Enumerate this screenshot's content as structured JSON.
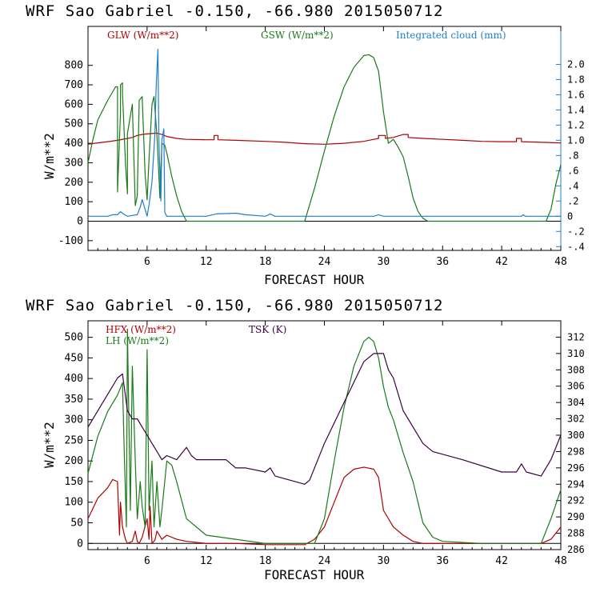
{
  "chart_data": [
    {
      "type": "line",
      "title": "WRF   Sao Gabriel    -0.150, -66.980  2015050712",
      "xlabel": "FORECAST HOUR",
      "ylabel": "W/m**2",
      "ylabel_right": "",
      "xlim": [
        0,
        48
      ],
      "ylim": [
        -150,
        1000
      ],
      "ylim_right": [
        -0.45,
        2.5
      ],
      "xticks": [
        6,
        12,
        18,
        24,
        30,
        36,
        42,
        48
      ],
      "yticks": [
        -100,
        0,
        100,
        200,
        300,
        400,
        500,
        600,
        700,
        800
      ],
      "yticks_right": [
        -0.4,
        -0.2,
        0,
        0.2,
        0.4,
        0.6,
        0.8,
        1.0,
        1.2,
        1.4,
        1.6,
        1.8,
        2.0
      ],
      "yticks_right_labels": [
        "-.4",
        "-.2",
        "0",
        ".2",
        ".4",
        ".6",
        ".8",
        "1.0",
        "1.2",
        "1.4",
        "1.6",
        "1.8",
        "2.0"
      ],
      "series": [
        {
          "name": "GLW (W/m**2)",
          "color": "#b00000",
          "axis": "left",
          "x": [
            0,
            1,
            2,
            3,
            4,
            4.5,
            5,
            5.5,
            6,
            6.5,
            7,
            7.5,
            8,
            9,
            10,
            12,
            12.8,
            12.8,
            13.2,
            13.2,
            15,
            18,
            20,
            22,
            24,
            26,
            28,
            29,
            29.5,
            29.5,
            30.2,
            30.2,
            31,
            32,
            32.5,
            32.5,
            34,
            36,
            38,
            40,
            42,
            43.5,
            43.5,
            44,
            44,
            46,
            48
          ],
          "y": [
            395,
            402,
            408,
            415,
            425,
            430,
            440,
            445,
            448,
            450,
            452,
            445,
            435,
            425,
            420,
            418,
            418,
            440,
            440,
            418,
            415,
            410,
            405,
            398,
            395,
            400,
            410,
            420,
            425,
            440,
            440,
            425,
            430,
            445,
            445,
            430,
            425,
            420,
            415,
            410,
            408,
            408,
            425,
            425,
            408,
            405,
            402
          ]
        },
        {
          "name": "GSW (W/m**2)",
          "color": "#1a7a1a",
          "axis": "left",
          "x": [
            0,
            0.5,
            1,
            2,
            2.8,
            3,
            3,
            3.3,
            3.3,
            3.5,
            3.5,
            3.8,
            4,
            4,
            4.5,
            4.8,
            5,
            5.2,
            5.5,
            5.8,
            6,
            6.2,
            6.5,
            6.7,
            7,
            7.3,
            7.5,
            7.8,
            8,
            8.5,
            9,
            9.5,
            10,
            10.5,
            22,
            23,
            24,
            25,
            26,
            27,
            28,
            28.5,
            29,
            29.5,
            30,
            30.5,
            31,
            31.5,
            32,
            32.5,
            33,
            33.5,
            34,
            34.5,
            46.5,
            47,
            47.5,
            48
          ],
          "y": [
            300,
            420,
            520,
            620,
            690,
            690,
            150,
            560,
            700,
            710,
            660,
            300,
            140,
            450,
            600,
            80,
            130,
            620,
            640,
            240,
            110,
            320,
            600,
            640,
            440,
            120,
            400,
            390,
            350,
            230,
            130,
            50,
            0,
            0,
            0,
            170,
            360,
            540,
            690,
            790,
            850,
            855,
            840,
            770,
            560,
            400,
            420,
            380,
            330,
            230,
            120,
            50,
            15,
            0,
            0,
            60,
            190,
            290
          ]
        },
        {
          "name": "Integrated cloud (mm)",
          "color": "#1f7fcc",
          "axis": "right",
          "x": [
            0,
            2,
            2.5,
            3,
            3.3,
            3.6,
            4,
            5,
            5.3,
            5.5,
            5.8,
            6,
            6.2,
            6.5,
            6.8,
            6.9,
            7.1,
            7.2,
            7.4,
            7.5,
            7.7,
            7.8,
            8,
            8.5,
            12,
            13,
            15,
            16,
            18,
            18.5,
            19,
            24,
            29,
            29.5,
            30,
            44,
            44.2,
            44.4,
            48
          ],
          "y": [
            0,
            0,
            0.02,
            0.02,
            0.06,
            0.03,
            0,
            0.02,
            0.12,
            0.22,
            0.09,
            0,
            0.15,
            0.45,
            1.1,
            1.65,
            2.2,
            1.0,
            0.2,
            1.0,
            1.15,
            0.05,
            0,
            0,
            0,
            0.03,
            0.04,
            0.02,
            0,
            0.03,
            0,
            0,
            0,
            0.02,
            0,
            0,
            0.02,
            0,
            0
          ]
        }
      ]
    },
    {
      "type": "line",
      "title": "WRF   Sao Gabriel    -0.150, -66.980  2015050712",
      "xlabel": "FORECAST HOUR",
      "ylabel": "W/m**2",
      "xlim": [
        0,
        48
      ],
      "ylim": [
        -15,
        540
      ],
      "ylim_right": [
        286,
        314
      ],
      "xticks": [
        6,
        12,
        18,
        24,
        30,
        36,
        42,
        48
      ],
      "yticks": [
        0,
        50,
        100,
        150,
        200,
        250,
        300,
        350,
        400,
        450,
        500
      ],
      "yticks_right": [
        286,
        288,
        290,
        292,
        294,
        296,
        298,
        300,
        302,
        304,
        306,
        308,
        310,
        312
      ],
      "series": [
        {
          "name": "HFX (W/m**2)",
          "color": "#b00000",
          "axis": "left",
          "x": [
            0,
            1,
            2,
            2.5,
            3,
            3.2,
            3.3,
            3.5,
            3.8,
            4,
            4.5,
            4.8,
            5,
            5.2,
            5.5,
            6,
            6.2,
            6.3,
            6.5,
            6.8,
            7,
            7.5,
            8,
            9,
            10,
            12,
            15,
            18,
            20,
            22,
            23,
            24,
            25,
            26,
            27,
            28,
            29,
            29.5,
            30,
            31,
            32,
            33,
            34,
            36,
            40,
            46,
            47,
            48
          ],
          "y": [
            60,
            110,
            135,
            155,
            150,
            20,
            100,
            40,
            10,
            0,
            5,
            30,
            5,
            0,
            15,
            60,
            10,
            90,
            0,
            8,
            30,
            10,
            20,
            10,
            5,
            0,
            0,
            -3,
            -3,
            -3,
            10,
            40,
            100,
            160,
            180,
            185,
            180,
            160,
            80,
            40,
            20,
            5,
            0,
            0,
            0,
            0,
            10,
            40
          ]
        },
        {
          "name": "LH (W/m**2)",
          "color": "#1a7a1a",
          "axis": "left",
          "x": [
            0,
            1,
            2,
            3,
            3.5,
            3.7,
            3.9,
            4,
            4.3,
            4.5,
            4.8,
            5,
            5.3,
            5.5,
            5.8,
            6,
            6.2,
            6.5,
            6.7,
            7,
            7.3,
            7.5,
            8,
            8.5,
            9,
            10,
            12,
            15,
            18,
            20,
            22,
            23,
            24,
            25,
            26,
            27,
            28,
            28.5,
            29,
            29.5,
            30,
            30.5,
            31,
            31.5,
            32,
            33,
            34,
            35,
            36,
            40,
            46,
            47,
            48
          ],
          "y": [
            170,
            260,
            320,
            360,
            390,
            200,
            40,
            520,
            80,
            430,
            200,
            60,
            150,
            90,
            40,
            470,
            80,
            200,
            40,
            150,
            40,
            80,
            200,
            190,
            150,
            60,
            20,
            10,
            0,
            0,
            0,
            0,
            60,
            200,
            330,
            430,
            490,
            500,
            490,
            450,
            380,
            330,
            300,
            260,
            220,
            150,
            50,
            15,
            5,
            0,
            0,
            60,
            130
          ]
        },
        {
          "name": "TSK (K)",
          "color": "#3a0040",
          "axis": "right",
          "x": [
            0,
            1,
            2,
            3,
            3.5,
            4,
            4.5,
            5,
            5.5,
            6,
            6.5,
            7,
            7.5,
            8,
            9,
            10,
            10.5,
            11,
            14,
            15,
            16,
            18,
            18.5,
            19,
            22,
            22.5,
            24,
            26,
            28,
            29,
            30,
            30.5,
            31,
            32,
            34,
            35,
            38,
            42,
            43.5,
            44,
            44.5,
            46,
            47,
            48
          ],
          "y": [
            301,
            303,
            305,
            307,
            307.5,
            303,
            302,
            302,
            301,
            300,
            299,
            298,
            297,
            297.5,
            297,
            298.5,
            297.5,
            297,
            297,
            296,
            296,
            295.5,
            296,
            295,
            294,
            294.5,
            299,
            304,
            309,
            310,
            310,
            308,
            307,
            303,
            299,
            298,
            297,
            295.5,
            295.5,
            296.5,
            295.5,
            295,
            297,
            300
          ]
        }
      ]
    }
  ]
}
